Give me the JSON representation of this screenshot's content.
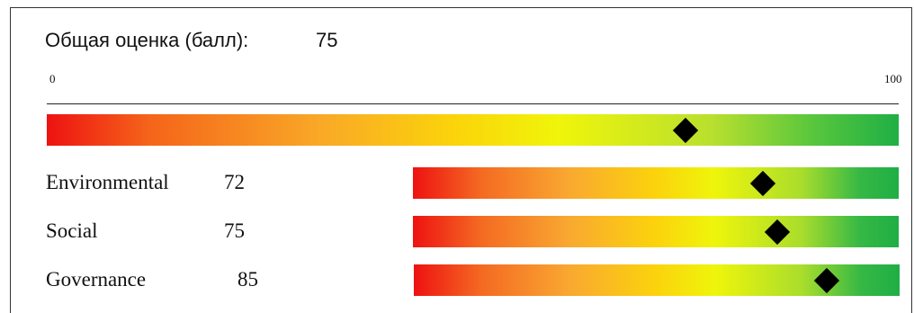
{
  "chart_data": {
    "type": "bar",
    "title": "Общая оценка (балл):",
    "overall_score": 75,
    "axis_min": 0,
    "axis_max": 100,
    "categories": [
      "Environmental",
      "Social",
      "Governance"
    ],
    "values": [
      72,
      75,
      85
    ],
    "marker_shape": "diamond",
    "colors": {
      "low": "#ee1212",
      "mid": "#f0f50a",
      "high": "#1faf45",
      "marker": "#000000"
    }
  }
}
